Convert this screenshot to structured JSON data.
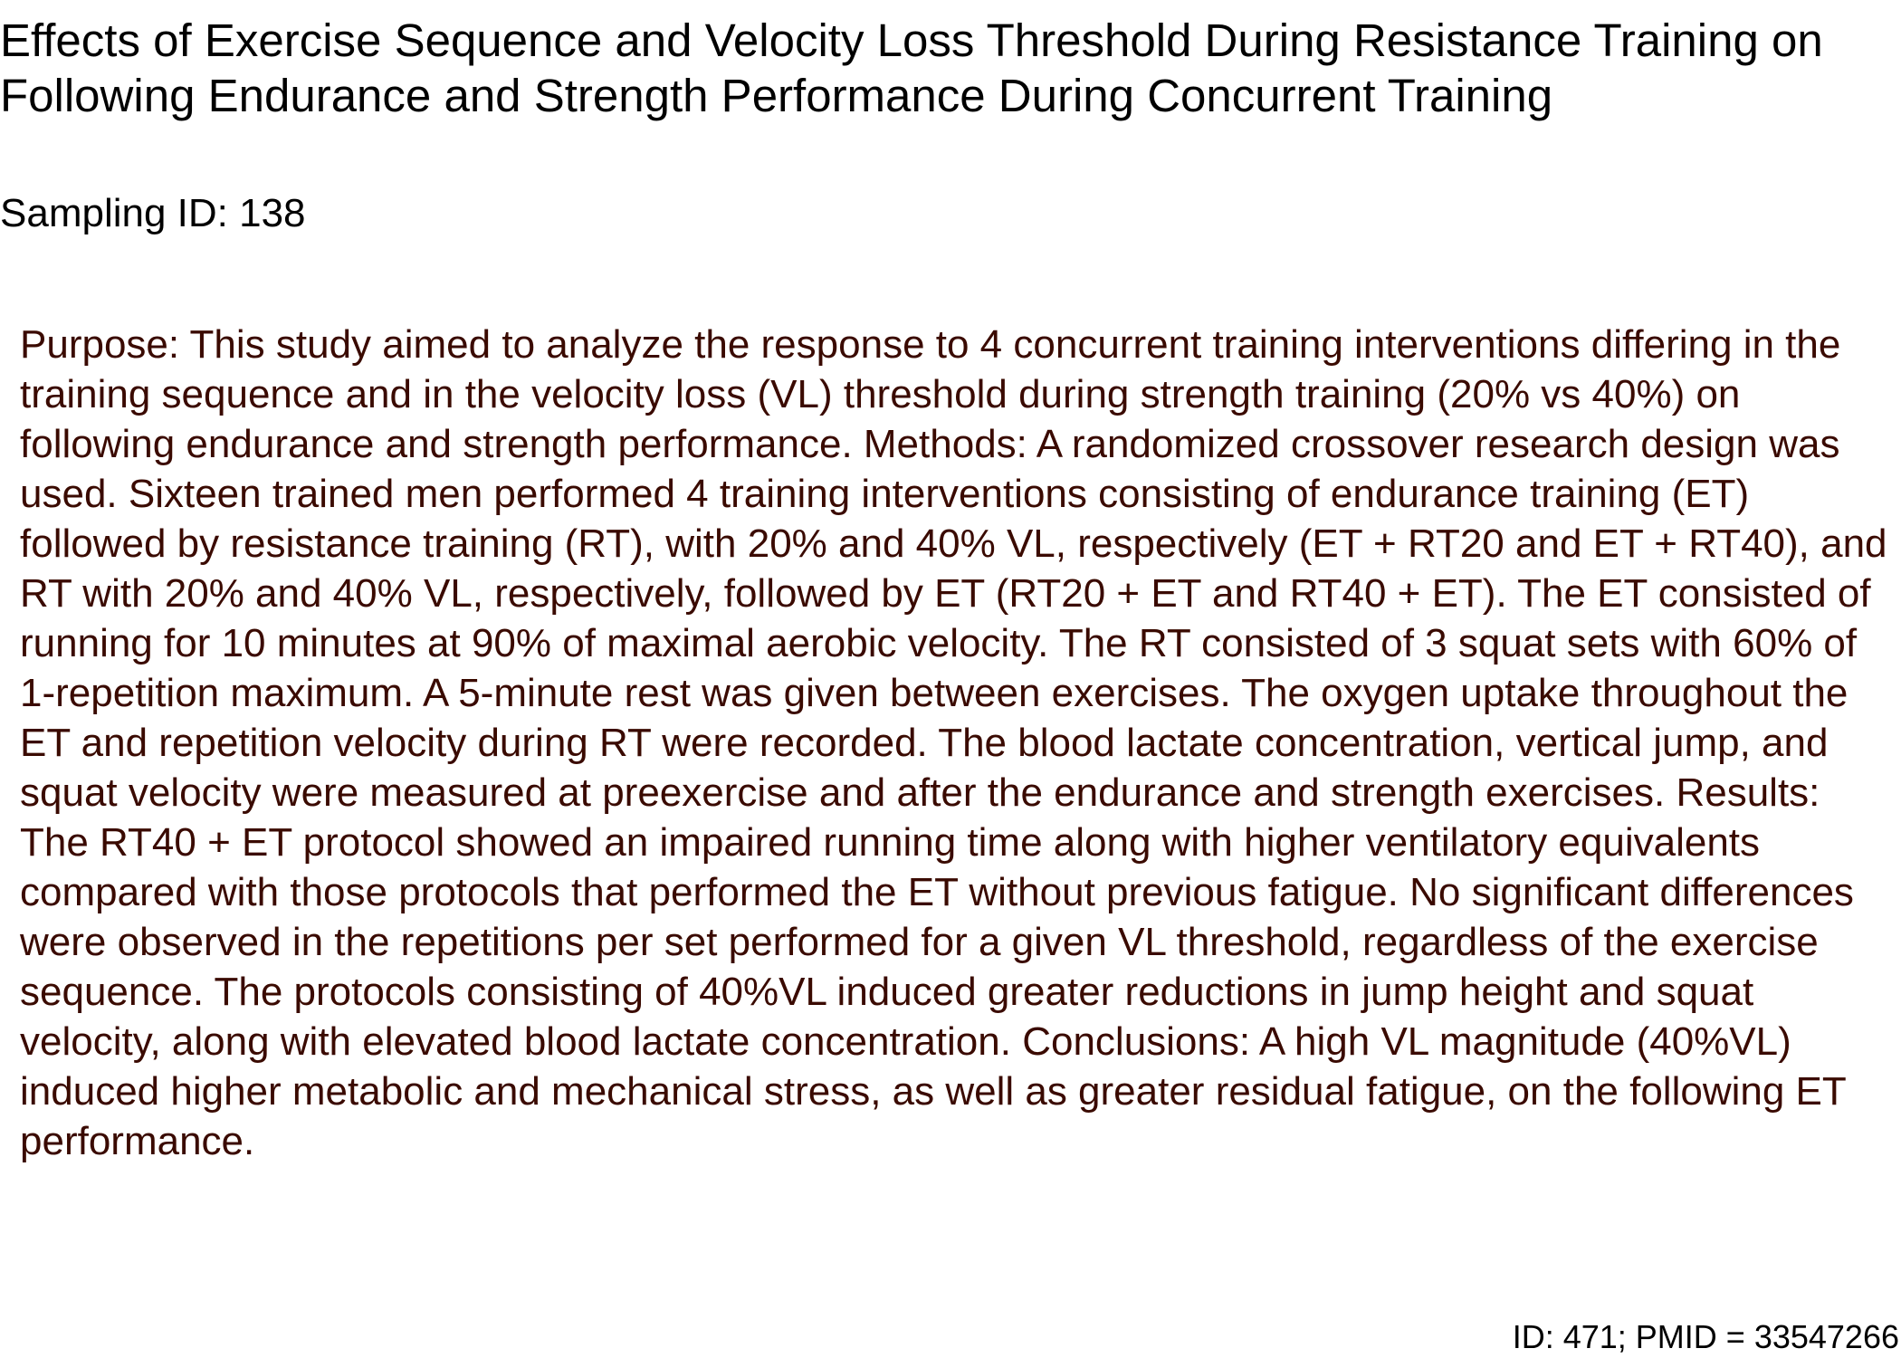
{
  "document": {
    "title": "Effects of Exercise Sequence and Velocity Loss Threshold During Resistance Training on Following Endurance and Strength Performance During Concurrent Training",
    "sampling_id": "Sampling ID: 138",
    "abstract": "Purpose: This study aimed to analyze the response to 4 concurrent training interventions differing in the training sequence and in the velocity loss (VL) threshold during strength training (20% vs 40%) on following endurance and strength performance. Methods: A randomized crossover research design was used. Sixteen trained men performed 4 training interventions consisting of endurance training (ET) followed by resistance training (RT), with 20% and 40% VL, respectively (ET + RT20 and ET + RT40), and RT with 20% and 40% VL, respectively, followed by ET (RT20 + ET and RT40 + ET). The ET consisted of running for 10 minutes at 90% of maximal aerobic velocity. The RT consisted of 3 squat sets with 60% of 1-repetition maximum. A 5-minute rest was given between exercises. The oxygen uptake throughout the ET and repetition velocity during RT were recorded. The blood lactate concentration, vertical jump, and squat velocity were measured at preexercise and after the endurance and strength exercises. Results: The RT40 + ET protocol showed an impaired running time along with higher ventilatory equivalents compared with those protocols that performed the ET without previous fatigue. No significant differences were observed in the repetitions per set performed for a given VL threshold, regardless of the exercise sequence. The protocols consisting of 40%VL induced greater reductions in jump height and squat velocity, along with elevated blood lactate concentration. Conclusions: A high VL magnitude (40%VL) induced higher metabolic and mechanical stress, as well as greater residual fatigue, on the following ET performance.",
    "footer_id": "ID: 471; PMID = 33547266"
  },
  "colors": {
    "title_text": "#000000",
    "abstract_text": "#3a0a00",
    "background": "#ffffff"
  }
}
